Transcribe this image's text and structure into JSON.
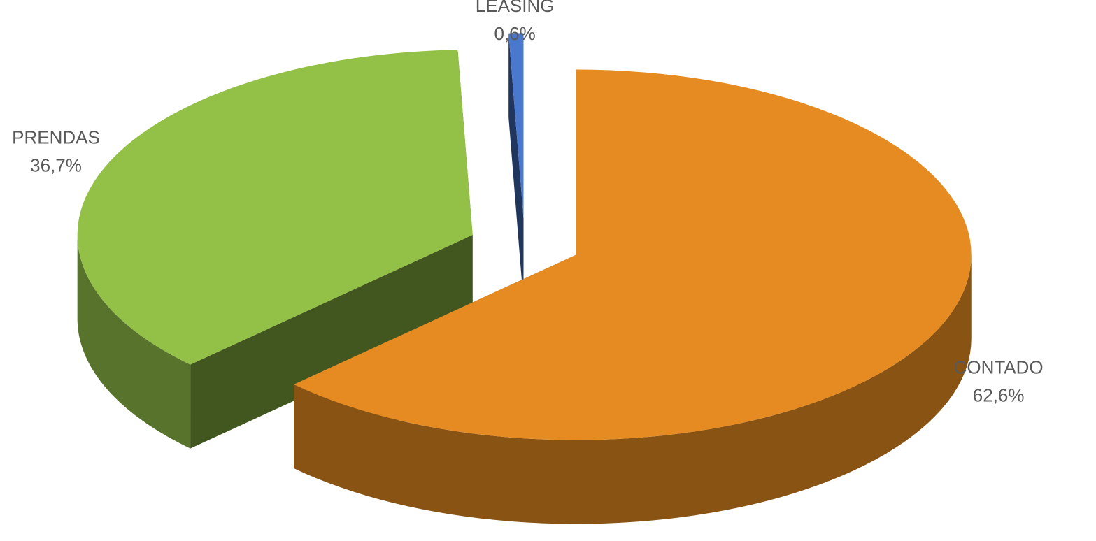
{
  "chart_data": {
    "type": "pie",
    "categories": [
      "CONTADO",
      "PRENDAS",
      "LEASING"
    ],
    "values": [
      62.6,
      36.7,
      0.6
    ],
    "value_labels": [
      "62,6%",
      "36,7%",
      "0,6%"
    ],
    "colors": [
      "#e58b22",
      "#93c047",
      "#4a78cf"
    ]
  }
}
